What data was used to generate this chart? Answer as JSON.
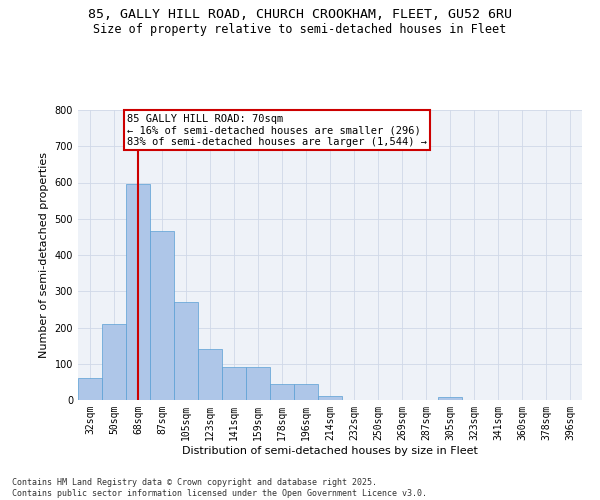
{
  "title_line1": "85, GALLY HILL ROAD, CHURCH CROOKHAM, FLEET, GU52 6RU",
  "title_line2": "Size of property relative to semi-detached houses in Fleet",
  "xlabel": "Distribution of semi-detached houses by size in Fleet",
  "ylabel": "Number of semi-detached properties",
  "bins": [
    "32sqm",
    "50sqm",
    "68sqm",
    "87sqm",
    "105sqm",
    "123sqm",
    "141sqm",
    "159sqm",
    "178sqm",
    "196sqm",
    "214sqm",
    "232sqm",
    "250sqm",
    "269sqm",
    "287sqm",
    "305sqm",
    "323sqm",
    "341sqm",
    "360sqm",
    "378sqm",
    "396sqm"
  ],
  "values": [
    60,
    210,
    595,
    465,
    270,
    140,
    92,
    92,
    45,
    45,
    11,
    0,
    0,
    0,
    0,
    9,
    0,
    0,
    0,
    0,
    0
  ],
  "property_bin_index": 2,
  "bar_color": "#aec6e8",
  "bar_edge_color": "#5a9fd4",
  "highlight_line_color": "#cc0000",
  "annotation_text": "85 GALLY HILL ROAD: 70sqm\n← 16% of semi-detached houses are smaller (296)\n83% of semi-detached houses are larger (1,544) →",
  "annotation_box_color": "#ffffff",
  "annotation_box_edge": "#cc0000",
  "ylim": [
    0,
    800
  ],
  "yticks": [
    0,
    100,
    200,
    300,
    400,
    500,
    600,
    700,
    800
  ],
  "grid_color": "#d0d8e8",
  "background_color": "#eef2f8",
  "footer_text": "Contains HM Land Registry data © Crown copyright and database right 2025.\nContains public sector information licensed under the Open Government Licence v3.0.",
  "title_fontsize": 9.5,
  "subtitle_fontsize": 8.5,
  "axis_label_fontsize": 8,
  "tick_fontsize": 7,
  "annotation_fontsize": 7.5,
  "footer_fontsize": 6
}
